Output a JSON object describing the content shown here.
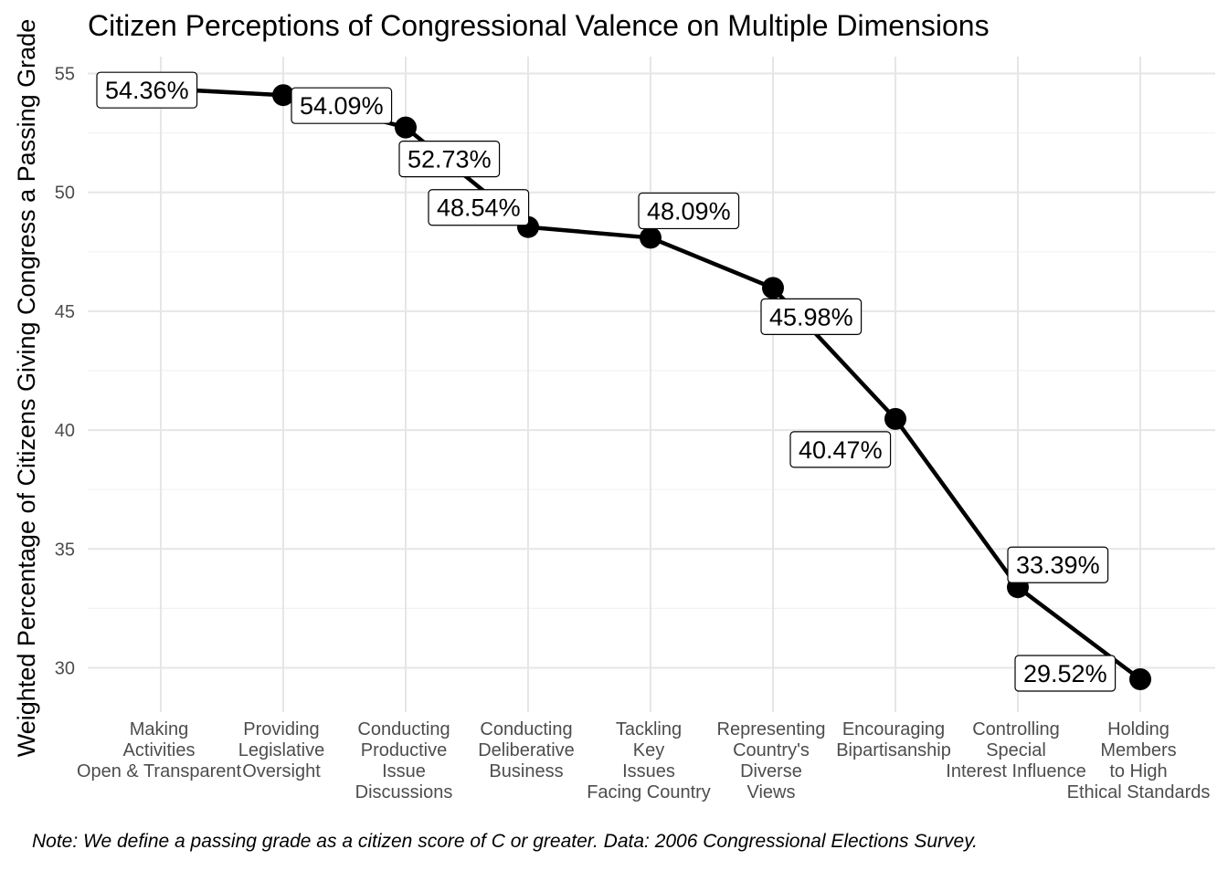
{
  "chart_data": {
    "type": "line",
    "title": "Citizen Perceptions of Congressional Valence on Multiple Dimensions",
    "xlabel": "",
    "ylabel": "Weighted Percentage of Citizens Giving Congress a Passing Grade",
    "categories": [
      [
        "Making",
        "Activities",
        "Open & Transparent"
      ],
      [
        "Providing",
        "Legislative",
        "Oversight"
      ],
      [
        "Conducting",
        "Productive",
        "Issue",
        "Discussions"
      ],
      [
        "Conducting",
        "Deliberative",
        "Business"
      ],
      [
        "Tackling",
        "Key",
        "Issues",
        "Facing Country"
      ],
      [
        "Representing",
        "Country's",
        "Diverse",
        "Views"
      ],
      [
        "Encouraging",
        "Bipartisanship"
      ],
      [
        "Controlling",
        "Special",
        "Interest Influence"
      ],
      [
        "Holding",
        "Members",
        "to High",
        "Ethical Standards"
      ]
    ],
    "values": [
      54.36,
      54.09,
      52.73,
      48.54,
      48.09,
      45.98,
      40.47,
      33.39,
      29.52
    ],
    "data_labels": [
      "54.36%",
      "54.09%",
      "52.73%",
      "48.54%",
      "48.09%",
      "45.98%",
      "40.47%",
      "33.39%",
      "29.52%"
    ],
    "y_ticks": [
      30,
      35,
      40,
      45,
      50,
      55
    ],
    "ylim": [
      28.5,
      56.5
    ],
    "grid": true,
    "legend": "none",
    "caption": "Note: We define a passing grade as a citizen score of C or greater. Data: 2006 Congressional Elections Survey."
  },
  "colors": {
    "line": "#000000",
    "grid_major": "#e6e6e6",
    "grid_minor": "#f2f2f2",
    "axis_text": "#4d4d4d"
  }
}
